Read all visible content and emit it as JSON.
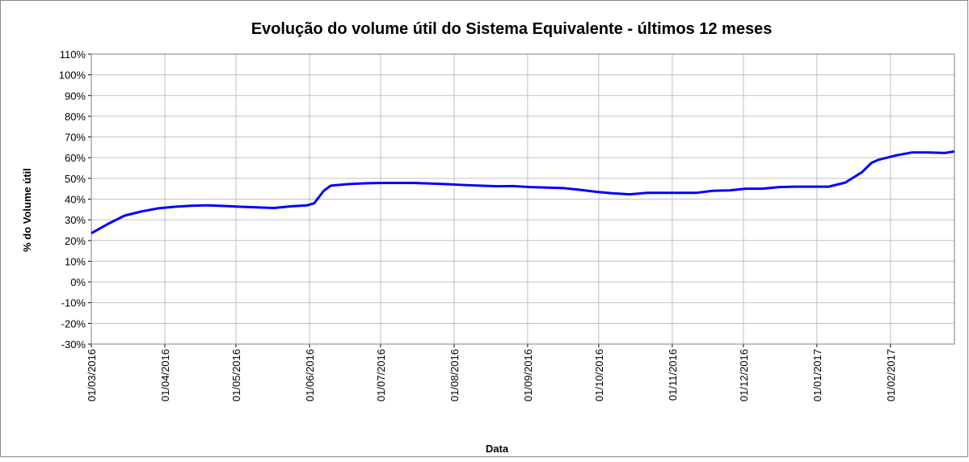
{
  "chart_data": {
    "type": "line",
    "title": "Evolução do volume útil do Sistema Equivalente - últimos 12 meses",
    "x_label": "Data",
    "y_label": "% do Volume útil",
    "x": [
      "01/03/2016",
      "08/03/2016",
      "15/03/2016",
      "22/03/2016",
      "29/03/2016",
      "05/04/2016",
      "12/04/2016",
      "19/04/2016",
      "26/04/2016",
      "03/05/2016",
      "10/05/2016",
      "17/05/2016",
      "24/05/2016",
      "31/05/2016",
      "03/06/2016",
      "07/06/2016",
      "10/06/2016",
      "17/06/2016",
      "24/06/2016",
      "01/07/2016",
      "15/07/2016",
      "29/07/2016",
      "05/08/2016",
      "19/08/2016",
      "26/08/2016",
      "02/09/2016",
      "16/09/2016",
      "23/09/2016",
      "30/09/2016",
      "07/10/2016",
      "14/10/2016",
      "21/10/2016",
      "28/10/2016",
      "04/11/2016",
      "11/11/2016",
      "18/11/2016",
      "25/11/2016",
      "02/12/2016",
      "09/12/2016",
      "16/12/2016",
      "23/12/2016",
      "30/12/2016",
      "06/01/2017",
      "13/01/2017",
      "20/01/2017",
      "24/01/2017",
      "27/01/2017",
      "03/02/2017",
      "10/02/2017",
      "17/02/2017",
      "24/02/2017",
      "28/02/2017"
    ],
    "series": [
      {
        "name": "% do Volume útil",
        "color": "#0000ff",
        "values": [
          23.5,
          28,
          32,
          34,
          35.5,
          36.3,
          36.8,
          37,
          36.7,
          36.3,
          36,
          35.7,
          36.5,
          37,
          38,
          44,
          46.5,
          47.2,
          47.6,
          47.8,
          47.8,
          47.2,
          46.8,
          46.2,
          46.3,
          45.8,
          45.3,
          44.5,
          43.5,
          42.8,
          42.3,
          43,
          43,
          43,
          43,
          44,
          44.2,
          45,
          45,
          45.8,
          46,
          46,
          46,
          48,
          53,
          57.5,
          59,
          61,
          62.5,
          62.5,
          62.3,
          63
        ]
      }
    ],
    "xlim": [
      "01/03/2016",
      "28/02/2017"
    ],
    "xticks": [
      "01/03/2016",
      "01/04/2016",
      "01/05/2016",
      "01/06/2016",
      "01/07/2016",
      "01/08/2016",
      "01/09/2016",
      "01/10/2016",
      "01/11/2016",
      "01/12/2016",
      "01/01/2017",
      "01/02/2017"
    ],
    "ylim": [
      -30,
      110
    ],
    "yticks": [
      {
        "value": -30,
        "label": "-30%"
      },
      {
        "value": -20,
        "label": "-20%"
      },
      {
        "value": -10,
        "label": "-10%"
      },
      {
        "value": 0,
        "label": "0%"
      },
      {
        "value": 10,
        "label": "10%"
      },
      {
        "value": 20,
        "label": "20%"
      },
      {
        "value": 30,
        "label": "30%"
      },
      {
        "value": 40,
        "label": "40%"
      },
      {
        "value": 50,
        "label": "50%"
      },
      {
        "value": 60,
        "label": "60%"
      },
      {
        "value": 70,
        "label": "70%"
      },
      {
        "value": 80,
        "label": "80%"
      },
      {
        "value": 90,
        "label": "90%"
      },
      {
        "value": 100,
        "label": "100%"
      },
      {
        "value": 110,
        "label": "110%"
      }
    ],
    "grid": true
  }
}
